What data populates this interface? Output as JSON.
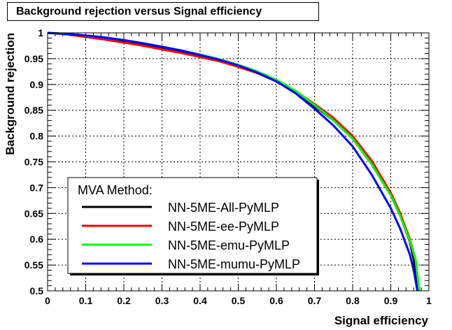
{
  "chart_data": {
    "type": "line",
    "title": "Background rejection versus Signal efficiency",
    "xlabel": "Signal efficiency",
    "ylabel": "Background rejection",
    "xlim": [
      0,
      1
    ],
    "ylim": [
      0.5,
      1
    ],
    "xticks": [
      0,
      0.1,
      0.2,
      0.3,
      0.4,
      0.5,
      0.6,
      0.7,
      0.8,
      0.9,
      1
    ],
    "xtick_labels": [
      "0",
      "0.1",
      "0.2",
      "0.3",
      "0.4",
      "0.5",
      "0.6",
      "0.7",
      "0.8",
      "0.9",
      "1"
    ],
    "yticks": [
      0.5,
      0.55,
      0.6,
      0.65,
      0.7,
      0.75,
      0.8,
      0.85,
      0.9,
      0.95,
      1
    ],
    "ytick_labels": [
      "0.5",
      "0.55",
      "0.6",
      "0.65",
      "0.7",
      "0.75",
      "0.8",
      "0.85",
      "0.9",
      "0.95",
      "1"
    ],
    "grid": true,
    "legend": {
      "title": "MVA Method:",
      "placement": "bottom-left"
    },
    "series": [
      {
        "name": "NN-5ME-All-PyMLP",
        "color": "#000000",
        "x": [
          0,
          0.05,
          0.1,
          0.15,
          0.2,
          0.25,
          0.3,
          0.35,
          0.4,
          0.45,
          0.5,
          0.55,
          0.6,
          0.65,
          0.7,
          0.75,
          0.8,
          0.85,
          0.9,
          0.925,
          0.95,
          0.96,
          0.97
        ],
        "y": [
          1,
          0.998,
          0.994,
          0.989,
          0.983,
          0.977,
          0.97,
          0.963,
          0.955,
          0.946,
          0.935,
          0.922,
          0.906,
          0.885,
          0.858,
          0.83,
          0.795,
          0.745,
          0.685,
          0.645,
          0.595,
          0.56,
          0.5
        ]
      },
      {
        "name": "NN-5ME-ee-PyMLP",
        "color": "#ff0000",
        "x": [
          0,
          0.05,
          0.1,
          0.15,
          0.2,
          0.25,
          0.3,
          0.35,
          0.4,
          0.45,
          0.5,
          0.55,
          0.6,
          0.65,
          0.7,
          0.75,
          0.8,
          0.85,
          0.9,
          0.925,
          0.95,
          0.965,
          0.975
        ],
        "y": [
          1,
          0.997,
          0.992,
          0.987,
          0.981,
          0.975,
          0.968,
          0.961,
          0.953,
          0.945,
          0.934,
          0.922,
          0.907,
          0.887,
          0.862,
          0.835,
          0.8,
          0.752,
          0.69,
          0.65,
          0.6,
          0.56,
          0.5
        ]
      },
      {
        "name": "NN-5ME-emu-PyMLP",
        "color": "#00ff00",
        "x": [
          0,
          0.05,
          0.1,
          0.15,
          0.2,
          0.25,
          0.3,
          0.35,
          0.4,
          0.45,
          0.5,
          0.55,
          0.6,
          0.65,
          0.7,
          0.75,
          0.8,
          0.85,
          0.9,
          0.925,
          0.95,
          0.965,
          0.975
        ],
        "y": [
          1,
          0.998,
          0.995,
          0.991,
          0.986,
          0.98,
          0.973,
          0.966,
          0.958,
          0.949,
          0.938,
          0.925,
          0.909,
          0.888,
          0.86,
          0.83,
          0.795,
          0.745,
          0.685,
          0.645,
          0.597,
          0.56,
          0.5
        ]
      },
      {
        "name": "NN-5ME-mumu-PyMLP",
        "color": "#0000ff",
        "x": [
          0,
          0.05,
          0.1,
          0.15,
          0.2,
          0.25,
          0.3,
          0.35,
          0.4,
          0.45,
          0.5,
          0.55,
          0.6,
          0.65,
          0.7,
          0.75,
          0.8,
          0.85,
          0.9,
          0.925,
          0.95,
          0.96,
          0.97
        ],
        "y": [
          1,
          0.998,
          0.995,
          0.991,
          0.986,
          0.98,
          0.973,
          0.966,
          0.957,
          0.948,
          0.937,
          0.923,
          0.906,
          0.883,
          0.853,
          0.82,
          0.78,
          0.725,
          0.66,
          0.62,
          0.57,
          0.54,
          0.5
        ]
      }
    ]
  }
}
